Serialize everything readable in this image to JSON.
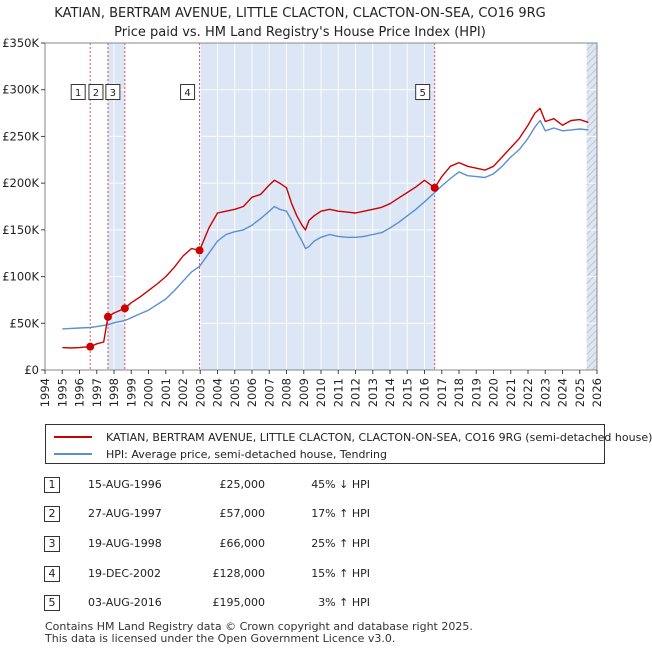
{
  "title_line1": "KATIAN, BERTRAM AVENUE, LITTLE CLACTON, CLACTON-ON-SEA, CO16 9RG",
  "title_line2": "Price paid vs. HM Land Registry's House Price Index (HPI)",
  "legend": {
    "red_label": "KATIAN, BERTRAM AVENUE, LITTLE CLACTON, CLACTON-ON-SEA, CO16 9RG (semi-detached house)",
    "blue_label": "HPI: Average price, semi-detached house, Tendring"
  },
  "transactions": [
    {
      "num": "1",
      "date": "15-AUG-1996",
      "price": "£25,000",
      "hpi": "45% ↓ HPI"
    },
    {
      "num": "2",
      "date": "27-AUG-1997",
      "price": "£57,000",
      "hpi": "17% ↑ HPI"
    },
    {
      "num": "3",
      "date": "19-AUG-1998",
      "price": "£66,000",
      "hpi": "25% ↑ HPI"
    },
    {
      "num": "4",
      "date": "19-DEC-2002",
      "price": "£128,000",
      "hpi": "15% ↑ HPI"
    },
    {
      "num": "5",
      "date": "03-AUG-2016",
      "price": "£195,000",
      "hpi": "3% ↑ HPI"
    }
  ],
  "footer": {
    "line1": "Contains HM Land Registry data © Crown copyright and database right 2025.",
    "line2": "This data is licensed under the Open Government Licence v3.0."
  },
  "colors": {
    "price_line": "#cc0000",
    "hpi_line": "#5b8fd0",
    "shade": "#dde6f5",
    "hatch": "#bbbbbb",
    "vline": "#e05050"
  },
  "chart_data": {
    "type": "line",
    "xlim": [
      1994,
      2026
    ],
    "ylim": [
      0,
      350000
    ],
    "yticks": [
      0,
      50000,
      100000,
      150000,
      200000,
      250000,
      300000,
      350000
    ],
    "ytick_labels": [
      "£0",
      "£50K",
      "£100K",
      "£150K",
      "£200K",
      "£250K",
      "£300K",
      "£350K"
    ],
    "xticks": [
      1994,
      1995,
      1996,
      1997,
      1998,
      1999,
      2000,
      2001,
      2002,
      2003,
      2004,
      2005,
      2006,
      2007,
      2008,
      2009,
      2010,
      2011,
      2012,
      2013,
      2014,
      2015,
      2016,
      2017,
      2018,
      2019,
      2020,
      2021,
      2022,
      2023,
      2024,
      2025,
      2026
    ],
    "shaded_spans": [
      [
        1997.65,
        1998.63
      ],
      [
        2002.96,
        2016.59
      ],
      [
        2025.4,
        2026
      ]
    ],
    "hatched_span": [
      2025.4,
      2026
    ],
    "markers": [
      {
        "label": "1",
        "x": 1996.62,
        "y": 25000,
        "box_y": 297000
      },
      {
        "label": "2",
        "x": 1997.65,
        "y": 57000,
        "box_y": 297000
      },
      {
        "label": "3",
        "x": 1998.63,
        "y": 66000,
        "box_y": 297000
      },
      {
        "label": "4",
        "x": 2002.96,
        "y": 128000,
        "box_y": 297000
      },
      {
        "label": "5",
        "x": 2016.59,
        "y": 195000,
        "box_y": 297000
      }
    ],
    "series": [
      {
        "name": "KATIAN, BERTRAM AVENUE, LITTLE CLACTON, CLACTON-ON-SEA, CO16 9RG (semi-detached house)",
        "x": [
          1995.0,
          1995.5,
          1996.0,
          1996.62,
          1997.0,
          1997.4,
          1997.65,
          1998.0,
          1998.63,
          1999.0,
          1999.5,
          2000.0,
          2000.5,
          2001.0,
          2001.5,
          2002.0,
          2002.5,
          2002.96,
          2003.5,
          2004.0,
          2004.5,
          2005.0,
          2005.5,
          2006.0,
          2006.5,
          2007.0,
          2007.3,
          2007.6,
          2008.0,
          2008.3,
          2008.6,
          2008.9,
          2009.1,
          2009.3,
          2009.6,
          2010.0,
          2010.5,
          2011.0,
          2011.5,
          2012.0,
          2012.5,
          2013.0,
          2013.5,
          2014.0,
          2014.5,
          2015.0,
          2015.5,
          2016.0,
          2016.59,
          2017.0,
          2017.5,
          2018.0,
          2018.5,
          2019.0,
          2019.5,
          2020.0,
          2020.5,
          2021.0,
          2021.5,
          2022.0,
          2022.4,
          2022.7,
          2023.0,
          2023.5,
          2024.0,
          2024.5,
          2025.0,
          2025.5
        ],
        "y": [
          24000,
          23500,
          24000,
          25000,
          28000,
          30000,
          57000,
          61000,
          66000,
          72000,
          78000,
          85000,
          92000,
          100000,
          110000,
          122000,
          130000,
          128000,
          152000,
          168000,
          170000,
          172000,
          175000,
          185000,
          188000,
          198000,
          203000,
          200000,
          195000,
          178000,
          165000,
          155000,
          150000,
          160000,
          165000,
          170000,
          172000,
          170000,
          169000,
          168000,
          170000,
          172000,
          174000,
          178000,
          184000,
          190000,
          196000,
          203000,
          195000,
          207000,
          218000,
          222000,
          218000,
          216000,
          214000,
          218000,
          228000,
          238000,
          248000,
          262000,
          275000,
          280000,
          266000,
          269000,
          262000,
          267000,
          268000,
          265000
        ]
      },
      {
        "name": "HPI: Average price, semi-detached house, Tendring",
        "x": [
          1995.0,
          1995.5,
          1996.0,
          1996.62,
          1997.0,
          1997.65,
          1998.0,
          1998.63,
          1999.0,
          1999.5,
          2000.0,
          2000.5,
          2001.0,
          2001.5,
          2002.0,
          2002.5,
          2002.96,
          2003.5,
          2004.0,
          2004.5,
          2005.0,
          2005.5,
          2006.0,
          2006.5,
          2007.0,
          2007.3,
          2007.6,
          2008.0,
          2008.3,
          2008.6,
          2008.9,
          2009.1,
          2009.3,
          2009.6,
          2010.0,
          2010.5,
          2011.0,
          2011.5,
          2012.0,
          2012.5,
          2013.0,
          2013.5,
          2014.0,
          2014.5,
          2015.0,
          2015.5,
          2016.0,
          2016.59,
          2017.0,
          2017.5,
          2018.0,
          2018.5,
          2019.0,
          2019.5,
          2020.0,
          2020.5,
          2021.0,
          2021.5,
          2022.0,
          2022.4,
          2022.7,
          2023.0,
          2023.5,
          2024.0,
          2024.5,
          2025.0,
          2025.5
        ],
        "y": [
          44000,
          44500,
          45000,
          45500,
          46500,
          48500,
          50500,
          53000,
          56000,
          60000,
          64000,
          70000,
          76000,
          85000,
          95000,
          105000,
          111000,
          125000,
          138000,
          145000,
          148000,
          150000,
          155000,
          162000,
          170000,
          175000,
          172000,
          170000,
          160000,
          148000,
          138000,
          130000,
          132000,
          138000,
          142000,
          145000,
          143000,
          142000,
          142000,
          143000,
          145000,
          147000,
          152000,
          158000,
          165000,
          172000,
          180000,
          190000,
          197000,
          205000,
          212000,
          208000,
          207000,
          206000,
          210000,
          218000,
          228000,
          236000,
          248000,
          260000,
          267000,
          256000,
          259000,
          256000,
          257000,
          258000,
          257000
        ]
      }
    ]
  }
}
